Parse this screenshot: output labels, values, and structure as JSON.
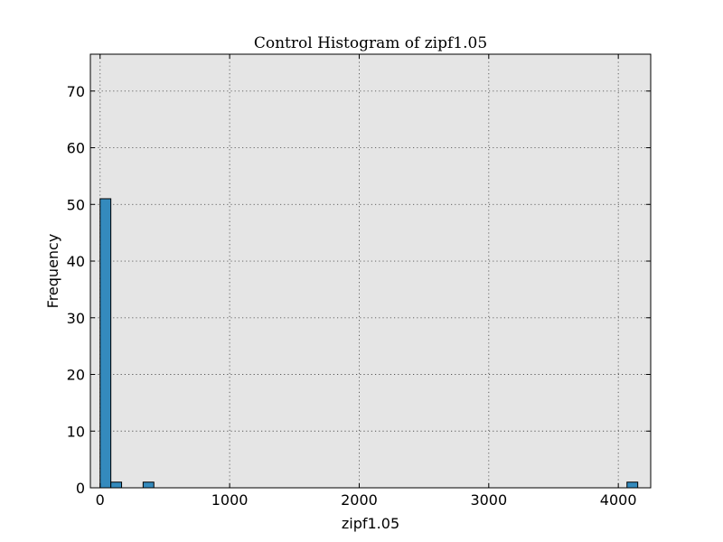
{
  "chart_data": {
    "type": "bar",
    "title": "Control Histogram of zipf1.05",
    "xlabel": "zipf1.05",
    "ylabel": "Frequency",
    "xlim": [
      -75,
      4250
    ],
    "ylim": [
      0,
      76.5
    ],
    "xticks": [
      0,
      1000,
      2000,
      3000,
      4000
    ],
    "yticks": [
      0,
      10,
      20,
      30,
      40,
      50,
      60,
      70
    ],
    "grid": true,
    "bin_width": 83,
    "bins": [
      {
        "x0": 0,
        "x1": 83,
        "count": 51
      },
      {
        "x0": 83,
        "x1": 166,
        "count": 1
      },
      {
        "x0": 332,
        "x1": 415,
        "count": 1
      },
      {
        "x0": 4067,
        "x1": 4150,
        "count": 1
      }
    ]
  }
}
